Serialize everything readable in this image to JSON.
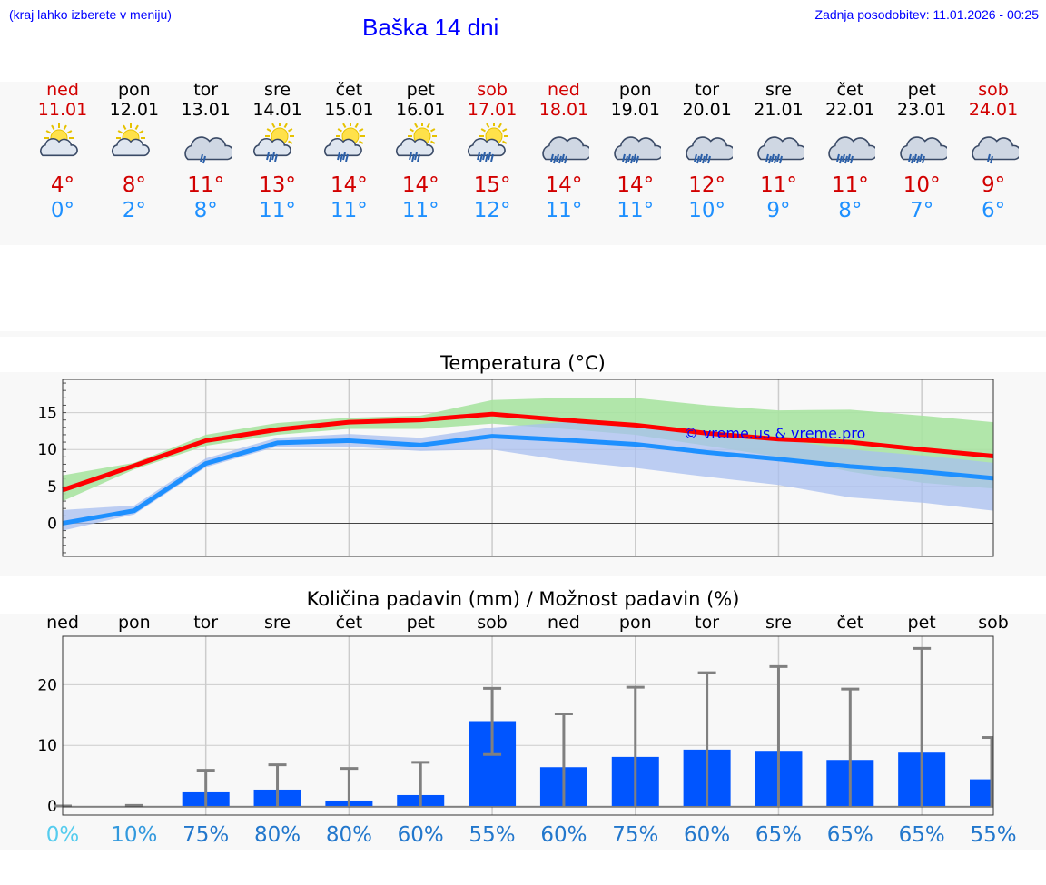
{
  "header": {
    "menu_hint": "(kraj lahko izberete v meniju)",
    "title": "Baška 14 dni",
    "updated": "Zadnja posodobitev: 11.01.2026 - 00:25"
  },
  "colors": {
    "link_blue": "#0000ff",
    "weekend_red": "#d20000",
    "max_red": "#ff0000",
    "min_blue": "#1e90ff",
    "bar_blue": "#0055ff",
    "band_green": "#a9e3a1",
    "band_blue": "#a8bff0"
  },
  "days": [
    {
      "name": "ned",
      "date": "11.01",
      "weekend": true,
      "icon": "sun-cloud-icon",
      "tmax": "4°",
      "tmin": "0°"
    },
    {
      "name": "pon",
      "date": "12.01",
      "weekend": false,
      "icon": "sun-cloud-icon",
      "tmax": "8°",
      "tmin": "2°"
    },
    {
      "name": "tor",
      "date": "13.01",
      "weekend": false,
      "icon": "cloud-rain-icon",
      "tmax": "11°",
      "tmin": "8°"
    },
    {
      "name": "sre",
      "date": "14.01",
      "weekend": false,
      "icon": "sun-cloud-rain-icon",
      "tmax": "13°",
      "tmin": "11°"
    },
    {
      "name": "čet",
      "date": "15.01",
      "weekend": false,
      "icon": "sun-cloud-rain-icon",
      "tmax": "14°",
      "tmin": "11°"
    },
    {
      "name": "pet",
      "date": "16.01",
      "weekend": false,
      "icon": "sun-cloud-rain-icon",
      "tmax": "14°",
      "tmin": "11°"
    },
    {
      "name": "sob",
      "date": "17.01",
      "weekend": true,
      "icon": "sun-cloud-heavy-rain-icon",
      "tmax": "15°",
      "tmin": "12°"
    },
    {
      "name": "ned",
      "date": "18.01",
      "weekend": true,
      "icon": "cloud-heavy-rain-icon",
      "tmax": "14°",
      "tmin": "11°"
    },
    {
      "name": "pon",
      "date": "19.01",
      "weekend": false,
      "icon": "cloud-heavy-rain-icon",
      "tmax": "14°",
      "tmin": "11°"
    },
    {
      "name": "tor",
      "date": "20.01",
      "weekend": false,
      "icon": "cloud-heavy-rain-icon",
      "tmax": "12°",
      "tmin": "10°"
    },
    {
      "name": "sre",
      "date": "21.01",
      "weekend": false,
      "icon": "cloud-heavy-rain-icon",
      "tmax": "11°",
      "tmin": "9°"
    },
    {
      "name": "čet",
      "date": "22.01",
      "weekend": false,
      "icon": "cloud-heavy-rain-icon",
      "tmax": "11°",
      "tmin": "8°"
    },
    {
      "name": "pet",
      "date": "23.01",
      "weekend": false,
      "icon": "cloud-heavy-rain-icon",
      "tmax": "10°",
      "tmin": "7°"
    },
    {
      "name": "sob",
      "date": "24.01",
      "weekend": true,
      "icon": "cloud-rain-icon",
      "tmax": "9°",
      "tmin": "6°"
    }
  ],
  "chart_data": [
    {
      "type": "line",
      "title": "Temperatura (°C)",
      "watermark": "© vreme.us & vreme.pro",
      "ylim": [
        -4.5,
        19.5
      ],
      "yticks": [
        0,
        5,
        10,
        15
      ],
      "x": [
        0,
        1,
        2,
        3,
        4,
        5,
        6,
        7,
        8,
        9,
        10,
        11,
        12,
        13
      ],
      "series": [
        {
          "name": "max",
          "values": [
            4.5,
            7.8,
            11.2,
            12.7,
            13.7,
            14.0,
            14.8,
            14.0,
            13.3,
            12.2,
            11.4,
            11.0,
            10.0,
            9.1
          ],
          "band_low": [
            3.0,
            7.3,
            10.5,
            12.0,
            12.8,
            12.8,
            13.5,
            12.8,
            12.0,
            10.5,
            9.0,
            7.0,
            5.5,
            4.7
          ],
          "band_high": [
            6.5,
            8.2,
            12.0,
            13.6,
            14.3,
            14.6,
            16.7,
            17.0,
            17.0,
            16.0,
            15.3,
            15.4,
            14.6,
            13.7
          ]
        },
        {
          "name": "min",
          "values": [
            0.0,
            1.7,
            8.1,
            10.9,
            11.2,
            10.6,
            11.8,
            11.3,
            10.7,
            9.6,
            8.7,
            7.7,
            7.0,
            6.1
          ],
          "band_low": [
            -1.0,
            1.2,
            7.6,
            10.4,
            10.4,
            9.8,
            10.0,
            8.5,
            7.5,
            6.3,
            5.2,
            3.5,
            2.8,
            1.7
          ],
          "band_high": [
            1.8,
            2.4,
            8.8,
            11.6,
            12.1,
            11.6,
            13.0,
            13.7,
            13.5,
            12.4,
            11.4,
            10.0,
            9.2,
            8.2
          ]
        }
      ]
    },
    {
      "type": "bar",
      "title": "Količina padavin (mm) / Možnost padavin (%)",
      "ylim": [
        -1.5,
        28
      ],
      "yticks": [
        0,
        10,
        20
      ],
      "categories": [
        "ned",
        "pon",
        "tor",
        "sre",
        "čet",
        "pet",
        "sob",
        "ned",
        "pon",
        "tor",
        "sre",
        "čet",
        "pet",
        "sob"
      ],
      "values": [
        0,
        0,
        2.4,
        2.7,
        0.9,
        1.8,
        14.0,
        6.4,
        8.1,
        9.3,
        9.1,
        7.6,
        8.8,
        4.4
      ],
      "error_low": [
        0,
        0,
        0,
        0,
        0,
        0,
        8.5,
        0,
        0,
        0,
        0,
        0,
        0,
        0
      ],
      "error_high": [
        0,
        0.1,
        5.9,
        6.8,
        6.2,
        7.2,
        19.4,
        15.2,
        19.6,
        22.0,
        23.0,
        19.3,
        26.0,
        11.3
      ],
      "probability": [
        "0%",
        "10%",
        "75%",
        "80%",
        "80%",
        "60%",
        "55%",
        "60%",
        "75%",
        "60%",
        "65%",
        "65%",
        "65%",
        "55%"
      ],
      "probability_colors": [
        "#55ccee",
        "#3399dd",
        "#2277cc",
        "#2277cc",
        "#2277cc",
        "#2277cc",
        "#2277cc",
        "#2277cc",
        "#2277cc",
        "#2277cc",
        "#2277cc",
        "#2277cc",
        "#2277cc",
        "#2277cc"
      ]
    }
  ]
}
